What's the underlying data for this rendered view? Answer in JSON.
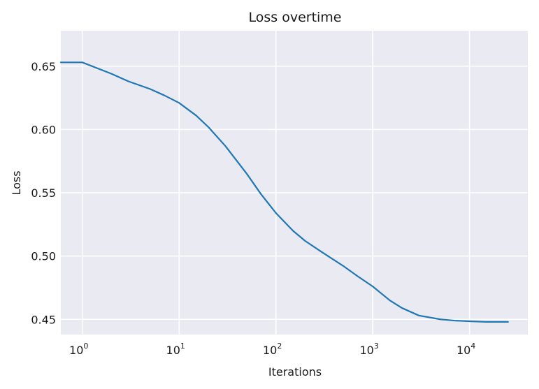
{
  "chart_data": {
    "type": "line",
    "title": "Loss overtime",
    "xlabel": "Iterations",
    "ylabel": "Loss",
    "x_scale": "log",
    "xlim": [
      0.6,
      40000
    ],
    "ylim": [
      0.438,
      0.678
    ],
    "grid": true,
    "background_color": "#eaeaf2",
    "grid_color": "#ffffff",
    "series": [
      {
        "color": "#1f77b4",
        "x": [
          0.6,
          1,
          2,
          3,
          5,
          7,
          10,
          15,
          20,
          30,
          50,
          70,
          100,
          150,
          200,
          300,
          500,
          700,
          1000,
          1500,
          2000,
          3000,
          5000,
          7000,
          10000,
          15000,
          25000
        ],
        "y": [
          0.653,
          0.653,
          0.644,
          0.638,
          0.632,
          0.627,
          0.621,
          0.611,
          0.602,
          0.587,
          0.565,
          0.549,
          0.534,
          0.52,
          0.512,
          0.503,
          0.492,
          0.484,
          0.476,
          0.465,
          0.459,
          0.453,
          0.45,
          0.449,
          0.4485,
          0.448,
          0.448
        ]
      }
    ],
    "x_ticks": [
      {
        "base": "10",
        "exp": "0",
        "value": 1
      },
      {
        "base": "10",
        "exp": "1",
        "value": 10
      },
      {
        "base": "10",
        "exp": "2",
        "value": 100
      },
      {
        "base": "10",
        "exp": "3",
        "value": 1000
      },
      {
        "base": "10",
        "exp": "4",
        "value": 10000
      }
    ],
    "y_ticks": [
      {
        "label": "0.45",
        "value": 0.45
      },
      {
        "label": "0.50",
        "value": 0.5
      },
      {
        "label": "0.55",
        "value": 0.55
      },
      {
        "label": "0.60",
        "value": 0.6
      },
      {
        "label": "0.65",
        "value": 0.65
      }
    ]
  }
}
